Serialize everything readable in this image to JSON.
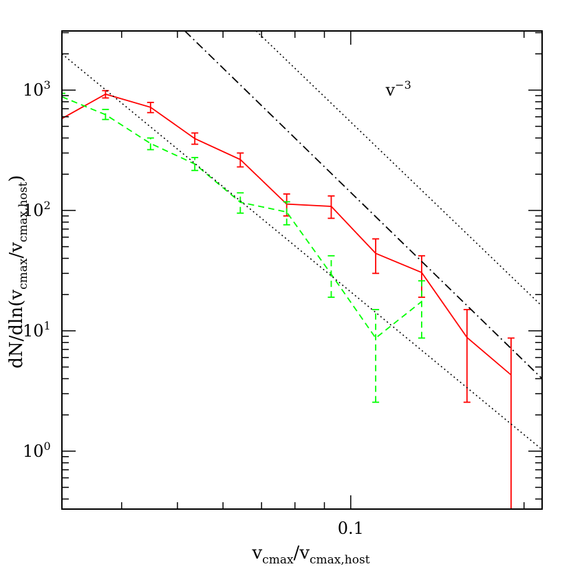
{
  "chart_data": {
    "type": "line",
    "xscale": "log",
    "yscale": "log",
    "xlim": [
      0.0315,
      0.215
    ],
    "ylim": [
      0.33,
      3100
    ],
    "xlabel": {
      "base": "v",
      "sub1": "cmax",
      "sep": "/",
      "base2": "v",
      "sub2": "cmax,host"
    },
    "ylabel": {
      "prefix": "dN/dln(v",
      "sub1": "cmax",
      "mid": "/v",
      "sub2": "cmax,host",
      "suffix": ")"
    },
    "x_tick_labels": [
      {
        "value": 0.1,
        "label": "0.1"
      }
    ],
    "y_tick_labels": [
      {
        "value": 1,
        "base": "10",
        "exp": "0"
      },
      {
        "value": 10,
        "base": "10",
        "exp": "1"
      },
      {
        "value": 100,
        "base": "10",
        "exp": "2"
      },
      {
        "value": 1000,
        "base": "10",
        "exp": "3"
      }
    ],
    "annotation": {
      "base": "v",
      "exp": "−3",
      "x": 0.115,
      "y": 1000
    },
    "series": [
      {
        "name": "red-solid",
        "color": "#ff0000",
        "dash": "solid",
        "x": [
          0.0315,
          0.0375,
          0.0449,
          0.0536,
          0.0643,
          0.0774,
          0.0925,
          0.1105,
          0.1328,
          0.1592,
          0.1899
        ],
        "y": [
          580,
          925,
          720,
          395,
          265,
          113,
          108,
          44,
          30.5,
          8.8,
          4.3
        ],
        "err_low": [
          null,
          860,
          650,
          355,
          230,
          90,
          86,
          30,
          19,
          2.55,
          0.33
        ],
        "err_high": [
          null,
          990,
          790,
          440,
          300,
          137,
          132,
          58,
          42,
          15,
          8.7
        ]
      },
      {
        "name": "green-dashed",
        "color": "#00ff00",
        "dash": "dashed",
        "x": [
          0.0315,
          0.0375,
          0.0449,
          0.0536,
          0.0643,
          0.0774,
          0.0925,
          0.1105,
          0.1328
        ],
        "y": [
          880,
          625,
          360,
          243,
          117,
          97,
          29.5,
          8.7,
          17.5
        ],
        "err_low": [
          null,
          570,
          320,
          215,
          95,
          76,
          19,
          2.55,
          8.7
        ],
        "err_high": [
          940,
          690,
          400,
          275,
          140,
          118,
          42,
          15,
          26
        ]
      },
      {
        "name": "power-law-dashdot",
        "color": "#000000",
        "dash": "dashdot",
        "points": [
          [
            0.0515,
            3100
          ],
          [
            0.215,
            4.0
          ]
        ]
      },
      {
        "name": "power-law-dotted-upper",
        "color": "#000000",
        "dash": "dotted",
        "points": [
          [
            0.0685,
            3100
          ],
          [
            0.215,
            16.0
          ]
        ]
      },
      {
        "name": "power-law-dotted-lower",
        "color": "#000000",
        "dash": "dotted",
        "points": [
          [
            0.0315,
            2000
          ],
          [
            0.215,
            1.03
          ]
        ]
      }
    ]
  }
}
